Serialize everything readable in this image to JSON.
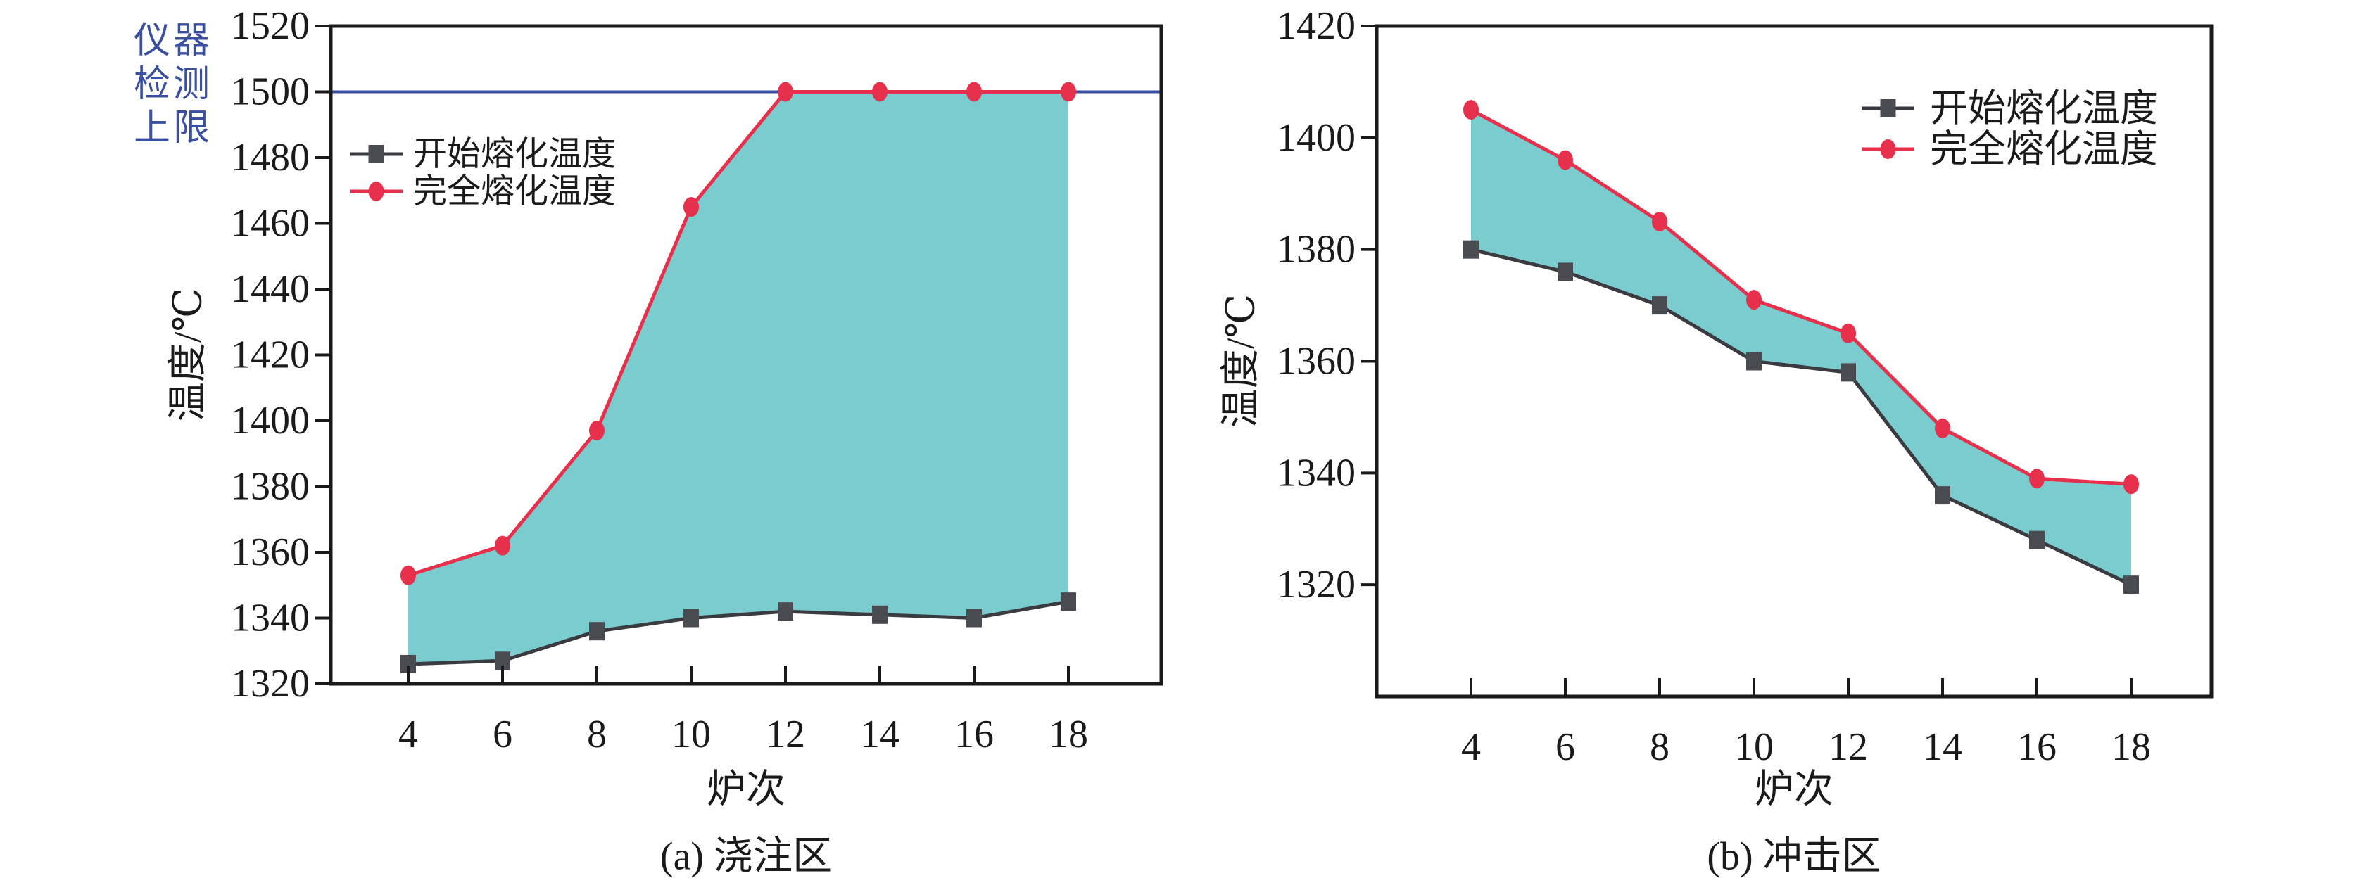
{
  "annotation": {
    "lines": [
      "仪器",
      "检测",
      "上限"
    ],
    "color": "#3a4fa0"
  },
  "style": {
    "frame_color": "#1a1a1a",
    "band_fill_color": "#7accce",
    "start_series_color": "#3a3b40",
    "start_marker_color": "#4a4b50",
    "full_series_color": "#e7304c",
    "ref_line_color": "#3a4fa0",
    "background": "#ffffff"
  },
  "chart_data": [
    {
      "id": "a",
      "type": "line",
      "caption": "(a) 浇注区",
      "xlabel": "炉次",
      "ylabel": "温度/℃",
      "x": [
        4,
        6,
        8,
        10,
        12,
        14,
        16,
        18
      ],
      "ylim": [
        1320,
        1520
      ],
      "yticks": [
        1320,
        1340,
        1360,
        1380,
        1400,
        1420,
        1440,
        1460,
        1480,
        1500,
        1520
      ],
      "grid": false,
      "legend_position": "upper-left",
      "band_between_series": true,
      "ref_line": {
        "value": 1500,
        "label": "仪器检测上限",
        "color": "#3a4fa0"
      },
      "series": [
        {
          "id": "start-melting",
          "name": "开始熔化温度",
          "marker": "square",
          "color": "#3a3b40",
          "marker_color": "#4a4b50",
          "values": [
            1326,
            1327,
            1336,
            1340,
            1342,
            1341,
            1340,
            1345
          ]
        },
        {
          "id": "full-melting",
          "name": "完全熔化温度",
          "marker": "circle",
          "color": "#e7304c",
          "marker_color": "#e7304c",
          "values": [
            1353,
            1362,
            1397,
            1465,
            1500,
            1500,
            1500,
            1500
          ]
        }
      ]
    },
    {
      "id": "b",
      "type": "line",
      "caption": "(b) 冲击区",
      "xlabel": "炉次",
      "ylabel": "温度/℃",
      "x": [
        4,
        6,
        8,
        10,
        12,
        14,
        16,
        18
      ],
      "ylim": [
        1300,
        1420
      ],
      "yticks": [
        1320,
        1340,
        1360,
        1380,
        1400,
        1420
      ],
      "grid": false,
      "legend_position": "upper-right",
      "band_between_series": true,
      "ref_line": null,
      "series": [
        {
          "id": "start-melting",
          "name": "开始熔化温度",
          "marker": "square",
          "color": "#3a3b40",
          "marker_color": "#4a4b50",
          "values": [
            1380,
            1376,
            1370,
            1360,
            1358,
            1336,
            1328,
            1320
          ]
        },
        {
          "id": "full-melting",
          "name": "完全熔化温度",
          "marker": "circle",
          "color": "#e7304c",
          "marker_color": "#e7304c",
          "values": [
            1405,
            1396,
            1385,
            1371,
            1365,
            1348,
            1339,
            1338
          ]
        }
      ]
    }
  ]
}
